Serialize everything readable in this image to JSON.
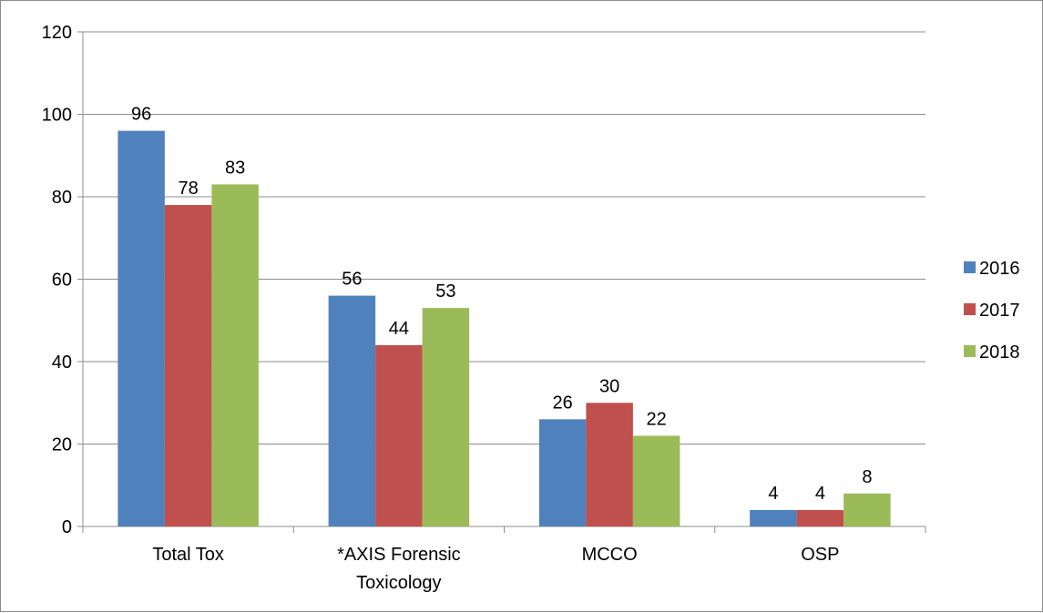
{
  "chart_data": {
    "type": "bar",
    "title": "",
    "xlabel": "",
    "ylabel": "",
    "categories": [
      "Total Tox",
      "*AXIS Forensic Toxicology",
      "MCCO",
      "OSP"
    ],
    "category_lines": [
      [
        "Total Tox"
      ],
      [
        "*AXIS Forensic",
        "Toxicology"
      ],
      [
        "MCCO"
      ],
      [
        "OSP"
      ]
    ],
    "series": [
      {
        "name": "2016",
        "values": [
          96,
          56,
          26,
          4
        ],
        "color": "#4f81bd"
      },
      {
        "name": "2017",
        "values": [
          78,
          44,
          30,
          4
        ],
        "color": "#c0504d"
      },
      {
        "name": "2018",
        "values": [
          83,
          53,
          22,
          8
        ],
        "color": "#9bbb59"
      }
    ],
    "ylim": [
      0,
      120
    ],
    "yticks": [
      0,
      20,
      40,
      60,
      80,
      100,
      120
    ],
    "grid": true,
    "data_labels": true,
    "legend": "right"
  }
}
